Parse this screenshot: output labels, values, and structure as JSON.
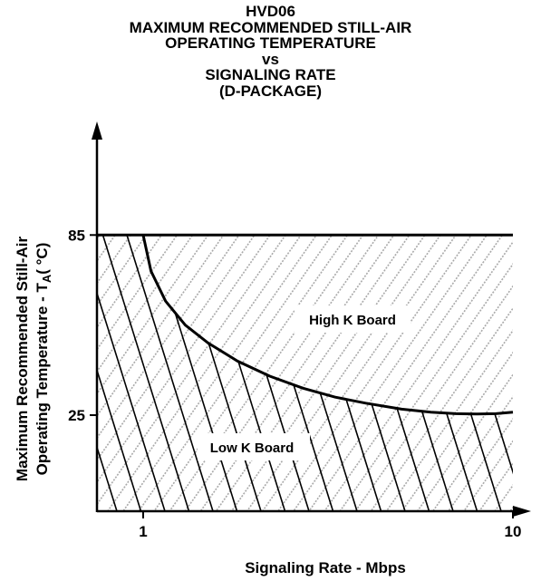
{
  "chart_data": {
    "type": "area",
    "title_lines": [
      "HVD06",
      "MAXIMUM RECOMMENDED STILL-AIR",
      "OPERATING TEMPERATURE",
      "vs",
      "SIGNALING RATE",
      "(D-PACKAGE)"
    ],
    "xlabel": "Signaling Rate - Mbps",
    "ylabel_line1": "Maximum Recommended Still-Air",
    "ylabel_line2_prefix": "Operating Temperature  -  T",
    "ylabel_subscript": "A",
    "ylabel_unit": "( °C)",
    "x_scale": "log",
    "xlim": [
      0.75,
      10
    ],
    "ylim": [
      -7,
      118
    ],
    "x_ticks": [
      {
        "value": 1,
        "label": "1"
      },
      {
        "value": 10,
        "label": "10"
      }
    ],
    "y_ticks": [
      {
        "value": 25,
        "label": "25"
      },
      {
        "value": 85,
        "label": "85"
      }
    ],
    "series": [
      {
        "name": "High K Board",
        "fill": "light-gray-hatch",
        "x": [
          0.75,
          10
        ],
        "y": [
          85,
          85
        ]
      },
      {
        "name": "Low K Board",
        "fill": "black-hatch",
        "x": [
          1.0,
          1.05,
          1.15,
          1.3,
          1.5,
          1.8,
          2.2,
          2.7,
          3.3,
          4.0,
          5.0,
          6.0,
          7.0,
          8.0,
          9.0,
          10.0
        ],
        "y": [
          85,
          73,
          63,
          55,
          49,
          43,
          38,
          34,
          31,
          29,
          27,
          26,
          25.5,
          25.4,
          25.5,
          26
        ]
      }
    ],
    "annotations": [
      "High K Board",
      "Low K Board"
    ],
    "grid": false
  }
}
